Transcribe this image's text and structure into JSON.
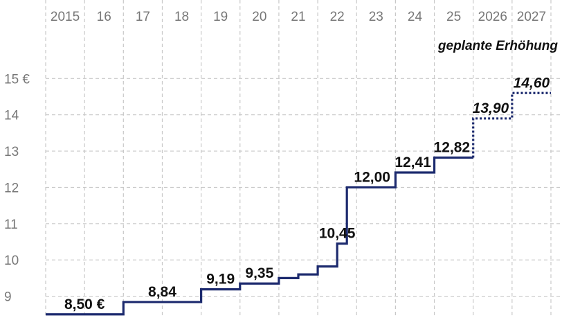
{
  "chart_data": {
    "type": "line",
    "step": true,
    "x_tick_labels": [
      "2015",
      "16",
      "17",
      "18",
      "19",
      "20",
      "21",
      "22",
      "23",
      "24",
      "25",
      "2026",
      "2027"
    ],
    "y_tick_labels": [
      "9",
      "10",
      "11",
      "12",
      "13",
      "14",
      "15 €"
    ],
    "y_ticks": [
      9,
      10,
      11,
      12,
      13,
      14,
      15
    ],
    "ylim": [
      8.4,
      16.4
    ],
    "xlim": [
      2015.0,
      2028.0
    ],
    "grid": true,
    "colors": {
      "actual": "#1c2a6e",
      "planned": "#1c2a6e",
      "grid": "#c8c8c8"
    },
    "series": [
      {
        "style": "solid",
        "points": [
          {
            "x": 2015.0,
            "y": 8.5
          },
          {
            "x": 2017.0,
            "y": 8.84
          },
          {
            "x": 2019.0,
            "y": 9.19
          },
          {
            "x": 2020.0,
            "y": 9.35
          },
          {
            "x": 2021.0,
            "y": 9.5
          },
          {
            "x": 2021.5,
            "y": 9.6
          },
          {
            "x": 2022.0,
            "y": 9.82
          },
          {
            "x": 2022.5,
            "y": 10.45
          },
          {
            "x": 2022.75,
            "y": 12.0
          },
          {
            "x": 2024.0,
            "y": 12.41
          },
          {
            "x": 2025.0,
            "y": 12.82
          },
          {
            "x": 2026.0,
            "y": 12.82
          }
        ]
      },
      {
        "style": "dotted",
        "points": [
          {
            "x": 2026.0,
            "y": 12.82
          },
          {
            "x": 2026.0,
            "y": 13.9
          },
          {
            "x": 2027.0,
            "y": 14.6
          },
          {
            "x": 2028.0,
            "y": 14.6
          }
        ]
      }
    ],
    "data_labels": [
      {
        "text": "8,50 €",
        "x": 2016.0,
        "y": 8.5,
        "planned": false
      },
      {
        "text": "8,84",
        "x": 2018.0,
        "y": 8.84,
        "planned": false
      },
      {
        "text": "9,19",
        "x": 2019.5,
        "y": 9.19,
        "planned": false
      },
      {
        "text": "9,35",
        "x": 2020.5,
        "y": 9.35,
        "planned": false
      },
      {
        "text": "10,45",
        "x": 2022.5,
        "y": 10.45,
        "planned": false
      },
      {
        "text": "12,00",
        "x": 2023.4,
        "y": 12.0,
        "planned": false
      },
      {
        "text": "12,41",
        "x": 2024.45,
        "y": 12.41,
        "planned": false
      },
      {
        "text": "12,82",
        "x": 2025.45,
        "y": 12.82,
        "planned": false
      },
      {
        "text": "13,90",
        "x": 2026.45,
        "y": 13.9,
        "planned": true
      },
      {
        "text": "14,60",
        "x": 2027.5,
        "y": 14.6,
        "planned": true
      }
    ],
    "annotation": "geplante Erhöhung"
  }
}
